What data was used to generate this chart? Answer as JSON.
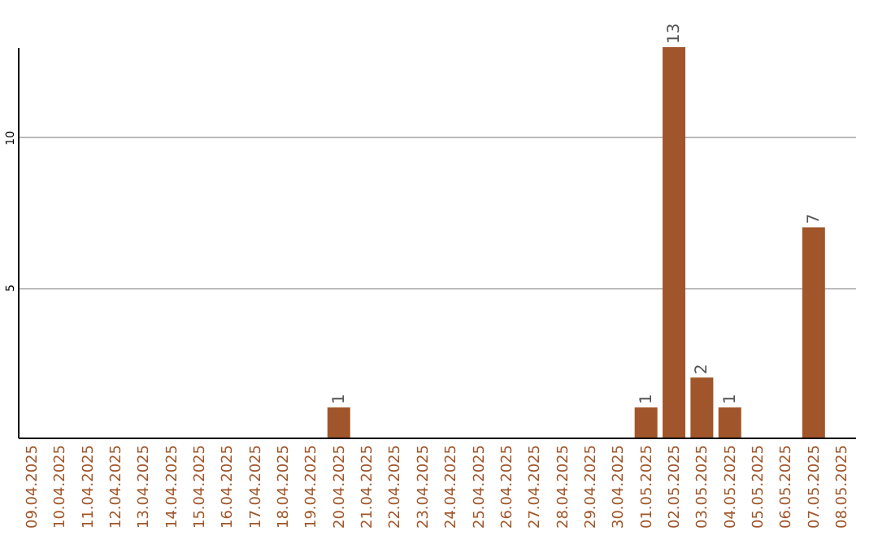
{
  "chart_data": {
    "type": "bar",
    "categories": [
      "09.04.2025",
      "10.04.2025",
      "11.04.2025",
      "12.04.2025",
      "13.04.2025",
      "14.04.2025",
      "15.04.2025",
      "16.04.2025",
      "17.04.2025",
      "18.04.2025",
      "19.04.2025",
      "20.04.2025",
      "21.04.2025",
      "22.04.2025",
      "23.04.2025",
      "24.04.2025",
      "25.04.2025",
      "26.04.2025",
      "27.04.2025",
      "28.04.2025",
      "29.04.2025",
      "30.04.2025",
      "01.05.2025",
      "02.05.2025",
      "03.05.2025",
      "04.05.2025",
      "05.05.2025",
      "06.05.2025",
      "07.05.2025",
      "08.05.2025"
    ],
    "values": [
      0,
      0,
      0,
      0,
      0,
      0,
      0,
      0,
      0,
      0,
      0,
      1,
      0,
      0,
      0,
      0,
      0,
      0,
      0,
      0,
      0,
      0,
      1,
      13,
      2,
      1,
      0,
      0,
      7,
      0
    ],
    "value_labels": [
      null,
      null,
      null,
      null,
      null,
      null,
      null,
      null,
      null,
      null,
      null,
      "1",
      null,
      null,
      null,
      null,
      null,
      null,
      null,
      null,
      null,
      null,
      "1",
      "13",
      "2",
      "1",
      null,
      null,
      "7",
      null
    ],
    "color": "#a0562a",
    "ylim": [
      0,
      13
    ],
    "yticks": [
      5,
      10
    ],
    "grid": "y"
  }
}
